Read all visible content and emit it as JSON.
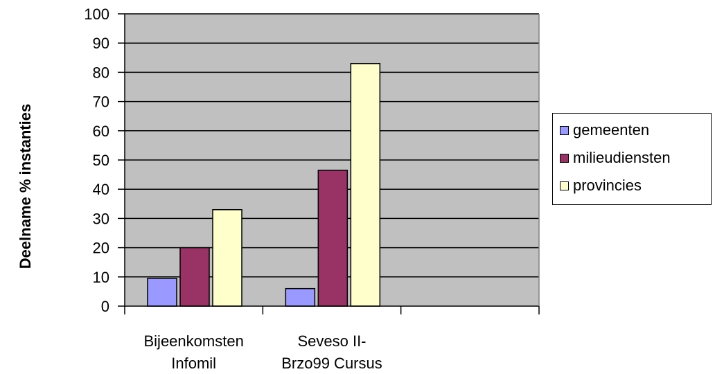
{
  "chart_data": {
    "type": "bar",
    "title": "",
    "xlabel": "",
    "ylabel": "Deelname % instanties",
    "ylim": [
      0,
      100
    ],
    "yticks": [
      0,
      10,
      20,
      30,
      40,
      50,
      60,
      70,
      80,
      90,
      100
    ],
    "categories": [
      [
        "Bijeenkomsten",
        "Infomil"
      ],
      [
        "Seveso II-",
        "Brzo99 Cursus"
      ],
      [
        "",
        ""
      ]
    ],
    "series": [
      {
        "name": "gemeenten",
        "color": "#9999FF",
        "values": [
          9.5,
          6,
          null
        ]
      },
      {
        "name": "milieudiensten",
        "color": "#993366",
        "values": [
          20,
          46.5,
          null
        ]
      },
      {
        "name": "provincies",
        "color": "#FFFFCC",
        "values": [
          33,
          83,
          null
        ]
      }
    ],
    "plot_background": "#C0C0C0",
    "grid": true,
    "legend_position": "right"
  }
}
